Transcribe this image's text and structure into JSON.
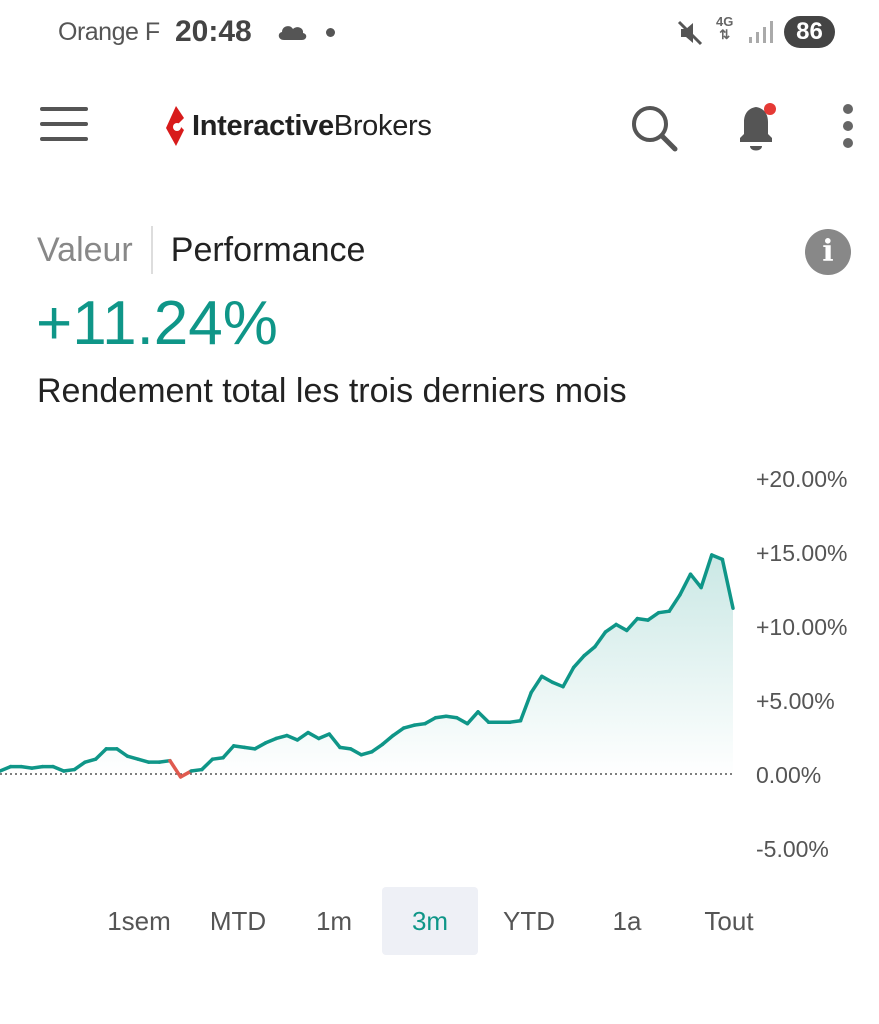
{
  "status_bar": {
    "carrier": "Orange F",
    "time": "20:48",
    "network": "4G",
    "battery": "86"
  },
  "app_bar": {
    "logo_bold": "Interactive",
    "logo_regular": "Brokers",
    "icons": [
      "menu-icon",
      "search-icon",
      "bell-icon",
      "more-icon"
    ],
    "notification_dot_color": "#e53935"
  },
  "tabs": {
    "valeur": "Valeur",
    "performance": "Performance",
    "active": "Performance"
  },
  "summary": {
    "value": "+11.24%",
    "description": "Rendement total les trois derniers mois"
  },
  "chart_data": {
    "type": "area",
    "y_ticks": [
      "+20.00%",
      "+15.00%",
      "+10.00%",
      "+5.00%",
      "0.00%",
      "-5.00%"
    ],
    "y_tick_values": [
      20,
      15,
      10,
      5,
      0,
      -5
    ],
    "ylim": [
      -5,
      20
    ],
    "baseline": 0,
    "colors": {
      "line": "#0f9688",
      "negative": "#e05a4f",
      "fill": "#0f9688"
    },
    "values": [
      0.2,
      0.5,
      0.5,
      0.4,
      0.5,
      0.5,
      0.2,
      0.3,
      0.8,
      1.0,
      1.7,
      1.7,
      1.2,
      1.0,
      0.8,
      0.8,
      0.9,
      -0.2,
      0.2,
      0.3,
      1.0,
      1.1,
      1.9,
      1.8,
      1.7,
      2.1,
      2.4,
      2.6,
      2.3,
      2.8,
      2.4,
      2.7,
      1.8,
      1.7,
      1.3,
      1.5,
      2.0,
      2.6,
      3.1,
      3.3,
      3.4,
      3.8,
      3.9,
      3.8,
      3.4,
      4.2,
      3.5,
      3.5,
      3.5,
      3.6,
      5.5,
      6.6,
      6.2,
      5.9,
      7.2,
      8.0,
      8.6,
      9.6,
      10.1,
      9.7,
      10.5,
      10.4,
      10.9,
      11.0,
      12.1,
      13.5,
      12.6,
      14.8,
      14.5,
      11.2
    ]
  },
  "ranges": {
    "items": [
      "1sem",
      "MTD",
      "1m",
      "3m",
      "YTD",
      "1a",
      "Tout"
    ],
    "active": "3m"
  }
}
